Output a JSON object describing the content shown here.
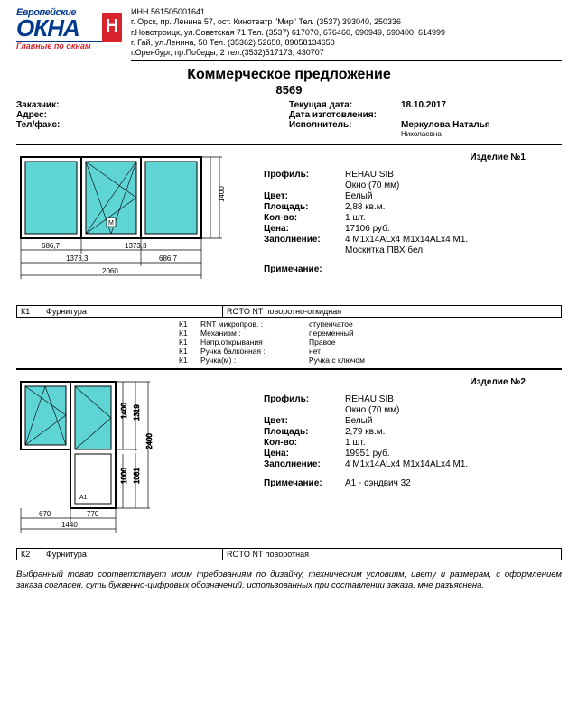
{
  "logo": {
    "top": "Европейские",
    "main": "ОКНА",
    "letter": "Н",
    "sub": "Главные по окнам"
  },
  "contacts": [
    "ИНН 561505001641",
    "г. Орск, пр. Ленина 57, ост. Кинотеатр \"Мир\" Тел. (3537) 393040, 250336",
    "г.Новотроицк, ул.Советская 71 Тел. (3537) 617070, 676460, 690949, 690400, 614999",
    "г. Гай, ул.Ленина, 50 Тел. (35362) 52650, 89058134650",
    "г.Оренбург, пр.Победы, 2 тел.(3532)517173, 430707"
  ],
  "title": "Коммерческое предложение",
  "doc_number": "8569",
  "customer": {
    "label_customer": "Заказчик:",
    "label_address": "Адрес:",
    "label_phone": "Тел/факс:"
  },
  "dates": {
    "label_current": "Текущая дата:",
    "current": "18.10.2017",
    "label_mfg": "Дата изготовления:",
    "label_exec": "Исполнитель:",
    "exec": "Меркулова Наталья",
    "sub": "Николаевна"
  },
  "item1": {
    "title": "Изделие №1",
    "profile_label": "Профиль:",
    "profile_val": "REHAU SIB",
    "profile_sub": "Окно (70 мм)",
    "color_label": "Цвет:",
    "color_val": "Белый",
    "area_label": "Площадь:",
    "area_val": "2,88 кв.м.",
    "qty_label": "Кол-во:",
    "qty_val": "1 шт.",
    "price_label": "Цена:",
    "price_val": "17106 руб.",
    "fill_label": "Заполнение:",
    "fill_val": "4 М1х14ALх4 М1х14ALх4 М1.",
    "fill_sub": "Москитка ПВХ бел.",
    "note_label": "Примечание:",
    "dims": {
      "w": "2060",
      "h": "1400",
      "w1": "686,7",
      "w2": "1373,3",
      "w3": "1373,3",
      "w4": "686,7"
    }
  },
  "k1": {
    "code": "К1",
    "cat": "Фурнитура",
    "val": "ROTO NT поворотно-откидная",
    "rows": [
      {
        "c1": "К1",
        "c2": "RNT микропров. :",
        "c3": "ступенчатое"
      },
      {
        "c1": "К1",
        "c2": "Механизм :",
        "c3": "переменный"
      },
      {
        "c1": "К1",
        "c2": "Напр.открывания :",
        "c3": "Правое"
      },
      {
        "c1": "К1",
        "c2": "Ручка балконная :",
        "c3": "нет"
      },
      {
        "c1": "К1",
        "c2": "Ручка(м) :",
        "c3": "Ручка с ключом"
      }
    ]
  },
  "item2": {
    "title": "Изделие №2",
    "profile_label": "Профиль:",
    "profile_val": "REHAU SIB",
    "profile_sub": "Окно (70 мм)",
    "color_label": "Цвет:",
    "color_val": "Белый",
    "area_label": "Площадь:",
    "area_val": "2,79 кв.м.",
    "qty_label": "Кол-во:",
    "qty_val": "1 шт.",
    "price_label": "Цена:",
    "price_val": "19951 руб.",
    "fill_label": "Заполнение:",
    "fill_val": "4 М1х14ALх4 М1х14ALх4 М1.",
    "note_label": "Примечание:",
    "note_val": "А1 - сэндвич 32",
    "dims": {
      "w": "1440",
      "w1": "670",
      "w2": "770",
      "h_full": "2400",
      "h_top": "1400",
      "h_door": "1000",
      "h_i1": "1319",
      "h_i2": "1081"
    }
  },
  "k2": {
    "code": "К2",
    "cat": "Фурнитура",
    "val": "ROTO NT поворотная"
  },
  "footer": "Выбранный товар соответствует моим требованиям по дизайну, техническим условиям, цвету и размерам, с оформлением заказа согласен, суть буквенно-цифровых обозначений, использованных при составлении заказа, мне разъяснена."
}
